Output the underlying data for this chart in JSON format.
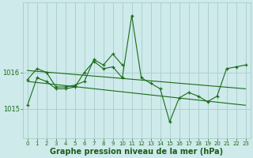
{
  "title": "Graphe pression niveau de la mer (hPa)",
  "background_color": "#ceeaea",
  "grid_color": "#aacccc",
  "line_color": "#1a6b1a",
  "xlabel_color": "#1a5c1a",
  "ylim": [
    1014.2,
    1017.9
  ],
  "yticks": [
    1015,
    1016
  ],
  "xlim": [
    -0.5,
    23.5
  ],
  "xticks": [
    0,
    1,
    2,
    3,
    4,
    5,
    6,
    7,
    8,
    9,
    10,
    11,
    12,
    13,
    14,
    15,
    16,
    17,
    18,
    19,
    20,
    21,
    22,
    23
  ],
  "series": [
    {
      "x": [
        0,
        1,
        2,
        3,
        4,
        5,
        6,
        7,
        8,
        9,
        10,
        11,
        12,
        13,
        14,
        15,
        16,
        17,
        18,
        19,
        20,
        21,
        22,
        23
      ],
      "y": [
        1015.1,
        1015.85,
        1015.75,
        1015.55,
        1015.55,
        1015.6,
        1016.0,
        1016.3,
        1016.1,
        1016.15,
        1015.85,
        1017.55,
        1015.85,
        1015.7,
        1015.55,
        1014.65,
        1015.3,
        1015.45,
        1015.35,
        1015.2,
        1015.35,
        1016.1,
        1016.15,
        1016.2
      ],
      "marker": true
    },
    {
      "x": [
        0,
        1,
        2,
        3,
        4,
        5,
        6,
        7,
        8,
        9,
        10
      ],
      "y": [
        1015.8,
        1016.1,
        1016.0,
        1015.6,
        1015.6,
        1015.65,
        1015.75,
        1016.35,
        1016.2,
        1016.5,
        1016.2
      ],
      "marker": true
    },
    {
      "x": [
        0,
        23
      ],
      "y": [
        1016.05,
        1015.55
      ],
      "marker": false
    },
    {
      "x": [
        0,
        23
      ],
      "y": [
        1015.75,
        1015.1
      ],
      "marker": false
    }
  ],
  "title_fontsize": 7,
  "tick_fontsize": 6,
  "figsize": [
    3.2,
    2.0
  ],
  "dpi": 100
}
